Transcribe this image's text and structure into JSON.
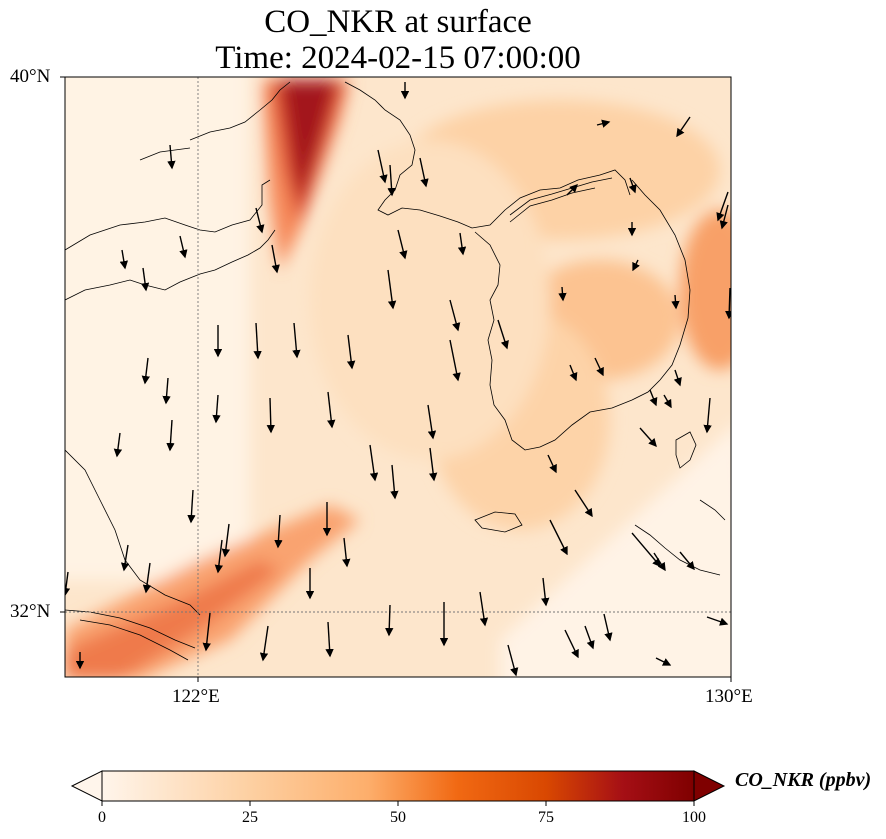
{
  "title": {
    "line1": "CO_NKR at surface",
    "line2": "Time: 2024-02-15 07:00:00"
  },
  "axes": {
    "lat_labels": [
      "40°N",
      "32°N"
    ],
    "lon_labels": [
      "122°E",
      "130°E"
    ]
  },
  "colorbar": {
    "label": "CO_NKR (ppbv)",
    "ticks": [
      "0",
      "25",
      "50",
      "75",
      "100"
    ],
    "colors": [
      "#fff5eb",
      "#fdd0a2",
      "#fdae6b",
      "#f16913",
      "#d94801",
      "#a50f15",
      "#7f0000"
    ]
  }
}
